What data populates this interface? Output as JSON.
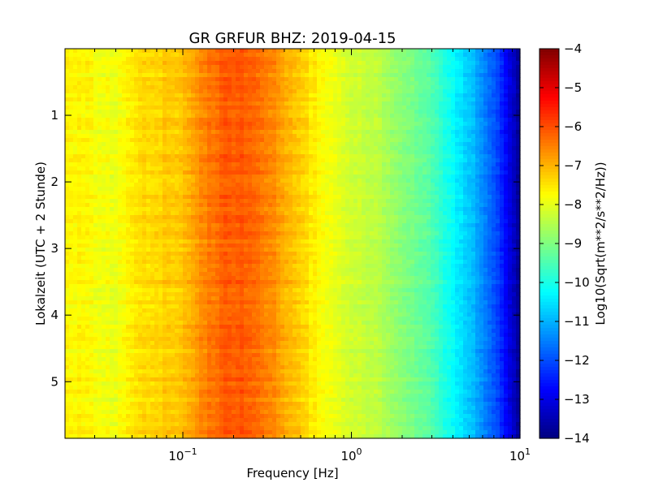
{
  "chart_data": {
    "type": "heatmap",
    "title": "GR GRFUR BHZ: 2019-04-15",
    "xlabel": "Frequency [Hz]",
    "ylabel": "Lokalzeit (UTC + 2 Stunde)",
    "x_scale": "log",
    "xlim": [
      0.02,
      10
    ],
    "ylim": [
      0,
      5.85
    ],
    "y_inverted": true,
    "x_ticks": [
      {
        "value": 0.1,
        "base": "10",
        "exp": "−1"
      },
      {
        "value": 1,
        "base": "10",
        "exp": "0"
      },
      {
        "value": 10,
        "base": "10",
        "exp": "1"
      }
    ],
    "y_ticks": [
      {
        "value": 1,
        "label": "1"
      },
      {
        "value": 2,
        "label": "2"
      },
      {
        "value": 3,
        "label": "3"
      },
      {
        "value": 4,
        "label": "4"
      },
      {
        "value": 5,
        "label": "5"
      }
    ],
    "colorbar": {
      "label": "Log10(Sqrt(m**2/s**2/Hz))",
      "range": [
        -14,
        -4
      ],
      "ticks": [
        {
          "value": -4,
          "label": "−4"
        },
        {
          "value": -5,
          "label": "−5"
        },
        {
          "value": -6,
          "label": "−6"
        },
        {
          "value": -7,
          "label": "−7"
        },
        {
          "value": -8,
          "label": "−8"
        },
        {
          "value": -9,
          "label": "−9"
        },
        {
          "value": -10,
          "label": "−10"
        },
        {
          "value": -11,
          "label": "−11"
        },
        {
          "value": -12,
          "label": "−12"
        },
        {
          "value": -13,
          "label": "−13"
        },
        {
          "value": -14,
          "label": "−14"
        }
      ],
      "colormap": "jet"
    },
    "spectrum_profile": {
      "frequency_hz": [
        0.02,
        0.04,
        0.06,
        0.1,
        0.13,
        0.17,
        0.22,
        0.3,
        0.4,
        0.6,
        0.8,
        1.0,
        1.5,
        2.0,
        3.0,
        4.0,
        5.0,
        6.0,
        8.0,
        10.0
      ],
      "log10_amplitude": [
        -7.6,
        -7.9,
        -7.4,
        -7.2,
        -6.6,
        -6.2,
        -6.1,
        -6.4,
        -6.9,
        -7.6,
        -8.0,
        -8.2,
        -8.5,
        -8.9,
        -9.5,
        -10.2,
        -10.8,
        -11.3,
        -12.5,
        -13.9
      ]
    }
  }
}
